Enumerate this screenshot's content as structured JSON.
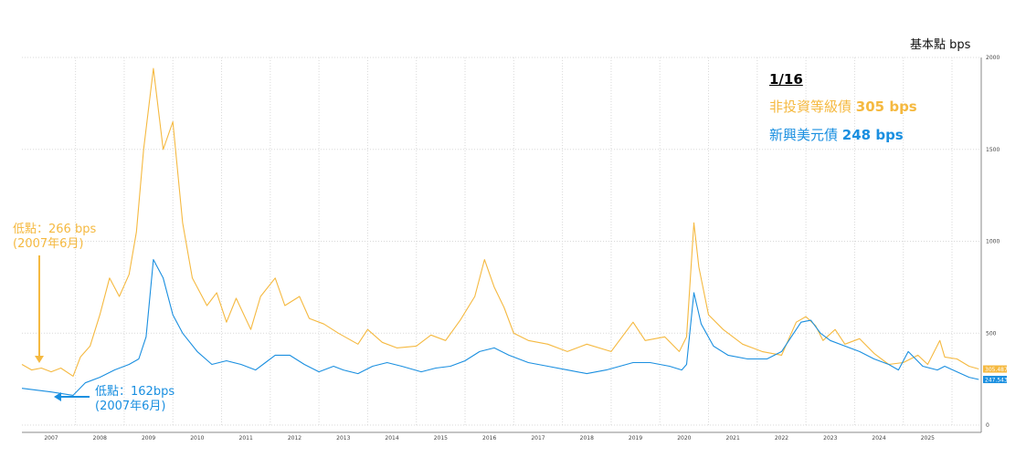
{
  "unit_label": "基本點 bps",
  "legend": {
    "date": "1/16",
    "hy_label": "非投資等級債",
    "hy_value": "305 bps",
    "em_label": "新興美元債",
    "em_value": "248 bps"
  },
  "annotations": {
    "hy_low_line1": "低點：266 bps",
    "hy_low_line2": "(2007年6月)",
    "em_low_line1": "低點：162bps",
    "em_low_line2": "(2007年6月)"
  },
  "colors": {
    "hy": "#f5b940",
    "em": "#1a8fe0",
    "grid": "#d9d9d9"
  },
  "chart_data": {
    "type": "line",
    "xlabel": "",
    "ylabel": "",
    "xlim": [
      2006.4,
      2026.1
    ],
    "ylim": [
      0,
      2000
    ],
    "y_ticks": [
      0,
      500,
      1000,
      1500,
      2000
    ],
    "x_tick_labels": [
      "2007",
      "2008",
      "2009",
      "2010",
      "2011",
      "2012",
      "2013",
      "2014",
      "2015",
      "2016",
      "2017",
      "2018",
      "2019",
      "2020",
      "2021",
      "2022",
      "2023",
      "2024",
      "2025"
    ],
    "end_labels": {
      "hy": "305.487",
      "em": "247.543"
    },
    "grid": true,
    "series": [
      {
        "name": "非投資等級債",
        "color": "#f5b940",
        "x": [
          2006.4,
          2006.6,
          2006.8,
          2007.0,
          2007.2,
          2007.45,
          2007.6,
          2007.8,
          2008.0,
          2008.2,
          2008.4,
          2008.6,
          2008.75,
          2008.9,
          2009.1,
          2009.3,
          2009.5,
          2009.7,
          2009.9,
          2010.2,
          2010.4,
          2010.6,
          2010.8,
          2011.1,
          2011.3,
          2011.6,
          2011.8,
          2012.1,
          2012.3,
          2012.6,
          2012.9,
          2013.1,
          2013.3,
          2013.5,
          2013.8,
          2014.1,
          2014.5,
          2014.8,
          2015.1,
          2015.4,
          2015.7,
          2015.9,
          2016.1,
          2016.3,
          2016.5,
          2016.8,
          2017.2,
          2017.6,
          2018.0,
          2018.5,
          2018.95,
          2019.2,
          2019.6,
          2019.9,
          2020.05,
          2020.2,
          2020.3,
          2020.5,
          2020.8,
          2021.2,
          2021.6,
          2022.0,
          2022.3,
          2022.5,
          2022.7,
          2022.85,
          2023.1,
          2023.3,
          2023.6,
          2023.9,
          2024.2,
          2024.5,
          2024.8,
          2025.0,
          2025.25,
          2025.35,
          2025.6,
          2025.85,
          2026.05
        ],
        "values": [
          330,
          300,
          310,
          290,
          310,
          266,
          370,
          430,
          600,
          800,
          700,
          820,
          1050,
          1500,
          1940,
          1500,
          1650,
          1100,
          800,
          650,
          720,
          560,
          690,
          520,
          700,
          800,
          650,
          700,
          580,
          550,
          500,
          470,
          440,
          520,
          450,
          420,
          430,
          490,
          460,
          570,
          700,
          900,
          750,
          640,
          500,
          460,
          440,
          400,
          440,
          400,
          560,
          460,
          480,
          400,
          480,
          1100,
          860,
          600,
          520,
          440,
          400,
          380,
          560,
          590,
          540,
          460,
          520,
          440,
          470,
          390,
          330,
          340,
          380,
          330,
          460,
          370,
          360,
          320,
          305
        ]
      },
      {
        "name": "新興美元債",
        "color": "#1a8fe0",
        "x": [
          2006.4,
          2006.7,
          2007.0,
          2007.45,
          2007.7,
          2008.0,
          2008.3,
          2008.6,
          2008.8,
          2008.95,
          2009.1,
          2009.3,
          2009.5,
          2009.7,
          2010.0,
          2010.3,
          2010.6,
          2010.9,
          2011.2,
          2011.4,
          2011.6,
          2011.9,
          2012.2,
          2012.5,
          2012.8,
          2013.0,
          2013.3,
          2013.6,
          2013.9,
          2014.2,
          2014.6,
          2014.9,
          2015.2,
          2015.5,
          2015.8,
          2016.1,
          2016.4,
          2016.8,
          2017.2,
          2017.6,
          2018.0,
          2018.4,
          2018.95,
          2019.3,
          2019.7,
          2019.95,
          2020.05,
          2020.2,
          2020.35,
          2020.6,
          2020.9,
          2021.3,
          2021.7,
          2022.0,
          2022.2,
          2022.4,
          2022.6,
          2022.8,
          2023.0,
          2023.3,
          2023.6,
          2023.9,
          2024.2,
          2024.4,
          2024.6,
          2024.9,
          2025.2,
          2025.35,
          2025.6,
          2025.85,
          2026.05
        ],
        "values": [
          200,
          190,
          180,
          162,
          230,
          260,
          300,
          330,
          360,
          480,
          900,
          800,
          600,
          500,
          400,
          330,
          350,
          330,
          300,
          340,
          380,
          380,
          330,
          290,
          320,
          300,
          280,
          320,
          340,
          320,
          290,
          310,
          320,
          350,
          400,
          420,
          380,
          340,
          320,
          300,
          280,
          300,
          340,
          340,
          320,
          300,
          330,
          720,
          550,
          430,
          380,
          360,
          360,
          400,
          480,
          560,
          570,
          500,
          460,
          430,
          400,
          360,
          330,
          300,
          400,
          320,
          300,
          320,
          290,
          260,
          248
        ]
      }
    ]
  }
}
